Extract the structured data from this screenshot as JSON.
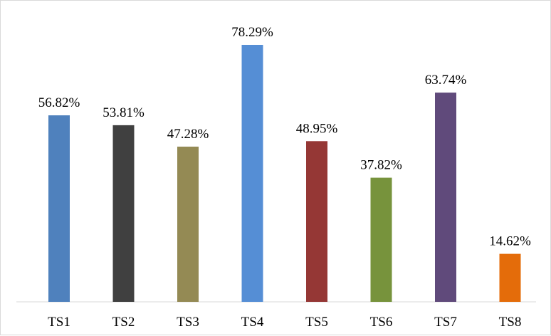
{
  "chart_data": {
    "type": "bar",
    "categories": [
      "TS1",
      "TS2",
      "TS3",
      "TS4",
      "TS5",
      "TS6",
      "TS7",
      "TS8"
    ],
    "values": [
      56.82,
      53.81,
      47.28,
      78.29,
      48.95,
      37.82,
      63.74,
      14.62
    ],
    "value_labels": [
      "56.82%",
      "53.81%",
      "47.28%",
      "78.29%",
      "48.95%",
      "37.82%",
      "63.74%",
      "14.62%"
    ],
    "colors": [
      "#4f81bd",
      "#404040",
      "#948a54",
      "#558ed5",
      "#953735",
      "#77933c",
      "#604a7b",
      "#e46c0a"
    ],
    "unit": "%",
    "ylim": [
      0,
      85
    ],
    "grid": false,
    "legend": "none"
  }
}
